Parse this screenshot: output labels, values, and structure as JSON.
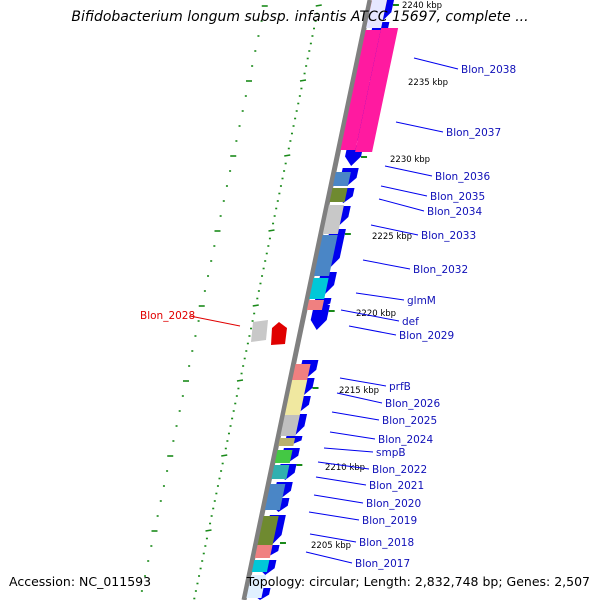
{
  "header": {
    "title": "Bifidobacterium longum subsp. infantis ATCC 15697, complete ..."
  },
  "footer": {
    "accession": "Accession: NC_011593",
    "summary": "Topology: circular; Length: 2,832,748 bp; Genes: 2,507"
  },
  "colors": {
    "backbone": "#808080",
    "cds": "#0000ee",
    "label": "#1010b8",
    "highlight": "#e00000",
    "tick": "#1a8a1a"
  },
  "kbp_labels": [
    "2240 kbp",
    "2235 kbp",
    "2230 kbp",
    "2225 kbp",
    "2220 kbp",
    "2215 kbp",
    "2210 kbp",
    "2205 kbp"
  ],
  "gene_labels": [
    "Blon_2038",
    "Blon_2037",
    "Blon_2036",
    "Blon_2035",
    "Blon_2034",
    "Blon_2033",
    "Blon_2032",
    "glmM",
    "def",
    "Blon_2029",
    "prfB",
    "Blon_2026",
    "Blon_2025",
    "Blon_2024",
    "smpB",
    "Blon_2022",
    "Blon_2021",
    "Blon_2020",
    "Blon_2019",
    "Blon_2018",
    "Blon_2017"
  ],
  "highlight_label": "Blon_2028"
}
